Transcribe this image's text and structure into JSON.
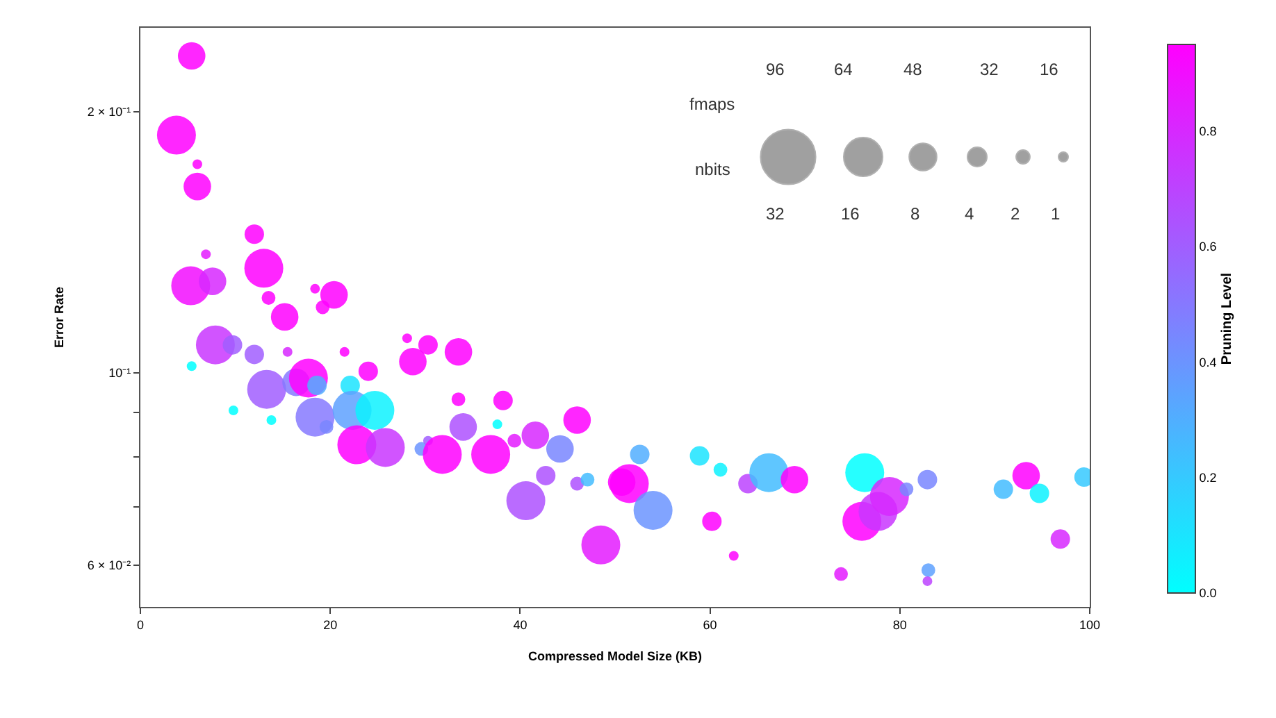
{
  "chart_data": {
    "type": "bubble",
    "xlabel": "Compressed Model Size (KB)",
    "ylabel": "Error Rate",
    "clabel": "Pruning Level",
    "x": [
      5.4,
      3.8,
      6.0,
      6.0,
      12.0,
      13.0,
      5.3,
      7.6,
      6.9,
      13.5,
      15.2,
      20.4,
      18.4,
      19.2,
      7.9,
      9.7,
      12.0,
      15.5,
      5.4,
      13.3,
      16.4,
      17.7,
      18.6,
      22.1,
      24.0,
      21.5,
      18.4,
      22.3,
      24.7,
      19.6,
      9.8,
      13.8,
      22.8,
      25.8,
      29.6,
      30.3,
      31.8,
      36.9,
      34.0,
      39.4,
      41.6,
      44.2,
      42.7,
      40.6,
      46.0,
      47.1,
      46.0,
      48.5,
      33.5,
      38.2,
      28.7,
      30.3,
      33.5,
      28.1,
      37.6,
      50.7,
      52.6,
      51.5,
      54.0,
      58.9,
      61.1,
      60.2,
      62.5,
      64.0,
      66.2,
      68.9,
      73.8,
      76.3,
      76.0,
      77.7,
      78.9,
      80.7,
      82.9,
      83.0,
      82.9,
      90.9,
      93.3,
      94.7,
      96.9,
      99.4
    ],
    "values": [
      0.232,
      0.188,
      0.164,
      0.174,
      0.1445,
      0.132,
      0.126,
      0.1275,
      0.137,
      0.122,
      0.116,
      0.123,
      0.125,
      0.119,
      0.1077,
      0.1077,
      0.105,
      0.1057,
      0.1018,
      0.0957,
      0.0975,
      0.0986,
      0.0967,
      0.0967,
      0.1004,
      0.1057,
      0.0889,
      0.0905,
      0.0905,
      0.0866,
      0.0905,
      0.0882,
      0.0826,
      0.082,
      0.0817,
      0.0835,
      0.0805,
      0.0805,
      0.0866,
      0.0835,
      0.0847,
      0.0817,
      0.0761,
      0.0712,
      0.0745,
      0.0753,
      0.0882,
      0.0633,
      0.0932,
      0.0929,
      0.103,
      0.1077,
      0.1057,
      0.1096,
      0.0872,
      0.0748,
      0.0805,
      0.0745,
      0.0694,
      0.0802,
      0.0773,
      0.0674,
      0.0615,
      0.0745,
      0.0767,
      0.0753,
      0.0586,
      0.0767,
      0.0674,
      0.0692,
      0.072,
      0.0734,
      0.0753,
      0.0592,
      0.0575,
      0.0734,
      0.0761,
      0.0726,
      0.0643,
      0.0758
    ],
    "sizes": [
      8,
      16,
      8,
      1,
      4,
      16,
      16,
      8,
      1,
      2,
      8,
      8,
      1,
      2,
      16,
      4,
      4,
      1,
      1,
      16,
      8,
      16,
      4,
      4,
      4,
      1,
      16,
      16,
      16,
      2,
      1,
      1,
      16,
      16,
      2,
      1,
      16,
      16,
      8,
      2,
      8,
      8,
      4,
      16,
      2,
      2,
      8,
      16,
      2,
      4,
      8,
      4,
      8,
      1,
      1,
      8,
      4,
      16,
      16,
      4,
      2,
      4,
      1,
      4,
      16,
      8,
      2,
      16,
      16,
      16,
      16,
      2,
      4,
      2,
      1,
      4,
      8,
      4,
      4,
      4
    ],
    "cvalues": [
      0.95,
      0.95,
      0.95,
      0.95,
      0.95,
      0.95,
      0.9,
      0.8,
      0.85,
      0.95,
      0.95,
      0.95,
      0.95,
      0.95,
      0.75,
      0.6,
      0.6,
      0.8,
      0.0,
      0.6,
      0.5,
      0.95,
      0.3,
      0.1,
      0.95,
      0.95,
      0.5,
      0.35,
      0.05,
      0.45,
      0.0,
      0.0,
      0.95,
      0.75,
      0.4,
      0.6,
      0.95,
      0.95,
      0.65,
      0.85,
      0.8,
      0.45,
      0.65,
      0.65,
      0.65,
      0.25,
      0.95,
      0.85,
      0.95,
      0.95,
      0.95,
      0.95,
      0.95,
      0.95,
      0.0,
      0.95,
      0.3,
      0.95,
      0.4,
      0.1,
      0.05,
      0.95,
      0.95,
      0.7,
      0.25,
      0.95,
      0.85,
      0.0,
      0.95,
      0.75,
      0.8,
      0.45,
      0.45,
      0.35,
      0.7,
      0.25,
      0.95,
      0.05,
      0.8,
      0.2
    ],
    "size_legend": [
      32,
      16,
      8,
      4,
      2,
      1
    ],
    "legend_title": "nbits",
    "annotations": [
      "fmaps",
      "96",
      "64",
      "48",
      "32",
      "16"
    ],
    "xlim": [
      0,
      100
    ],
    "xticks": [
      0,
      20,
      40,
      60,
      80,
      100
    ],
    "ylim": [
      0.0537,
      0.25
    ],
    "yticks": [
      {
        "value": 0.06,
        "label": "6 × 10⁻²"
      },
      {
        "value": 0.07,
        "label": null
      },
      {
        "value": 0.08,
        "label": null
      },
      {
        "value": 0.09,
        "label": null
      },
      {
        "value": 0.1,
        "label": "10⁻¹"
      },
      {
        "value": 0.2,
        "label": "2 × 10⁻¹"
      }
    ],
    "log": "y",
    "clim": [
      0,
      0.95
    ],
    "cticks": [
      {
        "value": 0,
        "label": "0.0"
      },
      {
        "value": 0.2,
        "label": "0.2"
      },
      {
        "value": 0.4,
        "label": "0.4"
      },
      {
        "value": 0.6,
        "label": "0.6"
      },
      {
        "value": 0.8,
        "label": "0.8"
      }
    ]
  }
}
